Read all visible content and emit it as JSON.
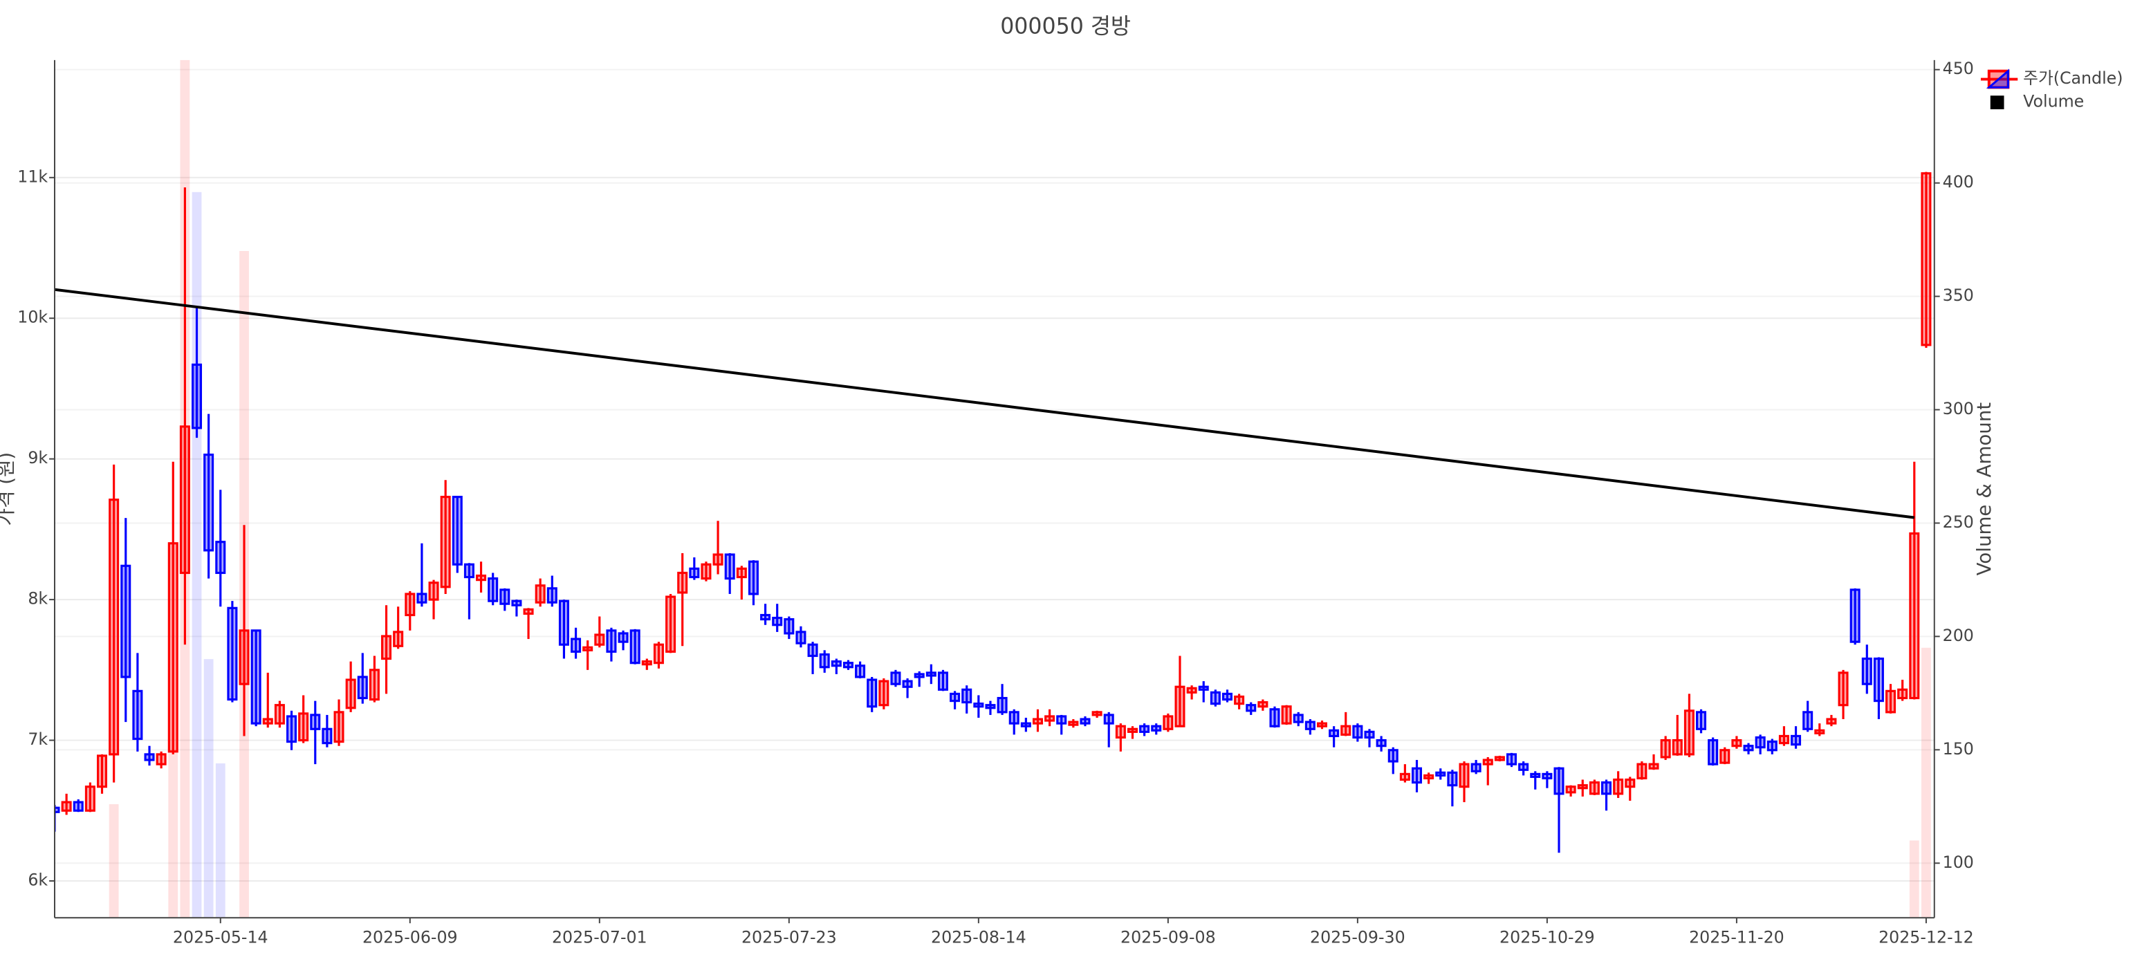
{
  "chart_data": {
    "type": "candlestick",
    "title": "000050 경방",
    "y_label": "가격 (원)",
    "y2_label": "Volume & Amount",
    "grid": true,
    "legend": "top-right",
    "categories": [
      null,
      null,
      null,
      null,
      null,
      null,
      null,
      null,
      null,
      null,
      null,
      null,
      null,
      null,
      "2025-05-14",
      null,
      null,
      null,
      null,
      null,
      null,
      null,
      null,
      null,
      null,
      null,
      null,
      null,
      null,
      null,
      "2025-06-09",
      null,
      null,
      null,
      null,
      null,
      null,
      null,
      null,
      null,
      null,
      null,
      null,
      null,
      null,
      null,
      "2025-07-01",
      null,
      null,
      null,
      null,
      null,
      null,
      null,
      null,
      null,
      null,
      null,
      null,
      null,
      null,
      null,
      "2025-07-23",
      null,
      null,
      null,
      null,
      null,
      null,
      null,
      null,
      null,
      null,
      null,
      null,
      null,
      null,
      null,
      "2025-08-14",
      null,
      null,
      null,
      null,
      null,
      null,
      null,
      null,
      null,
      null,
      null,
      null,
      null,
      null,
      null,
      "2025-09-08",
      null,
      null,
      null,
      null,
      null,
      null,
      null,
      null,
      null,
      null,
      null,
      null,
      null,
      null,
      null,
      "2025-09-30",
      null,
      null,
      null,
      null,
      null,
      null,
      null,
      null,
      null,
      null,
      null,
      null,
      null,
      null,
      null,
      "2025-10-29",
      null,
      null,
      null,
      null,
      null,
      null,
      null,
      null,
      null,
      null,
      null,
      null,
      null,
      null,
      null,
      "2025-11-20",
      null,
      null,
      null,
      null,
      null,
      null,
      null,
      null,
      null,
      null,
      null,
      null,
      null,
      null,
      null,
      "2025-12-12"
    ],
    "ylim": [
      5738,
      11835
    ],
    "yticks": [
      {
        "value": 6000,
        "label": "6k"
      },
      {
        "value": 7000,
        "label": "7k"
      },
      {
        "value": 8000,
        "label": "8k"
      },
      {
        "value": 9000,
        "label": "9k"
      },
      {
        "value": 10000,
        "label": "10k"
      },
      {
        "value": 11000,
        "label": "11k"
      }
    ],
    "y2lim": [
      75.9,
      454.2
    ],
    "y2ticks": [
      100,
      150,
      200,
      250,
      300,
      350,
      400,
      450
    ],
    "candles": {
      "name": "주가(Candle)",
      "increasing_color": "#ff0000",
      "decreasing_color": "#0000ff",
      "open": [
        6520,
        6500,
        6560,
        6500,
        6670,
        6900,
        8240,
        7350,
        6900,
        6830,
        6920,
        8190,
        9670,
        9030,
        8410,
        7940,
        7400,
        7780,
        7120,
        7120,
        7170,
        7000,
        7180,
        7080,
        6990,
        7230,
        7450,
        7290,
        7580,
        7670,
        7890,
        8040,
        8000,
        8090,
        8730,
        8250,
        8140,
        8150,
        8070,
        7990,
        7900,
        7980,
        8080,
        7990,
        7720,
        7640,
        7680,
        7780,
        7760,
        7780,
        7540,
        7550,
        7630,
        8050,
        8220,
        8150,
        8250,
        8320,
        8160,
        8270,
        7890,
        7870,
        7860,
        7770,
        7680,
        7610,
        7560,
        7550,
        7530,
        7430,
        7250,
        7480,
        7420,
        7470,
        7480,
        7480,
        7330,
        7360,
        7260,
        7250,
        7300,
        7200,
        7120,
        7120,
        7140,
        7170,
        7110,
        7150,
        7180,
        7180,
        7020,
        7060,
        7100,
        7100,
        7080,
        7100,
        7340,
        7380,
        7340,
        7330,
        7260,
        7250,
        7240,
        7220,
        7120,
        7180,
        7130,
        7100,
        7070,
        7040,
        7100,
        7060,
        7000,
        6930,
        6720,
        6800,
        6730,
        6770,
        6770,
        6670,
        6830,
        6830,
        6860,
        6900,
        6830,
        6760,
        6760,
        6800,
        6630,
        6660,
        6620,
        6700,
        6620,
        6670,
        6730,
        6800,
        6880,
        6900,
        6900,
        7200,
        7000,
        6840,
        6960,
        6960,
        7020,
        6990,
        6980,
        7030,
        7200,
        7050,
        7120,
        7250,
        8070,
        7580,
        7580,
        7200,
        7300,
        7300,
        9810
      ],
      "high": [
        6540,
        6620,
        6580,
        6700,
        6900,
        8960,
        8580,
        7620,
        6960,
        6920,
        8980,
        10930,
        10080,
        9320,
        8780,
        7990,
        8530,
        7780,
        7480,
        7280,
        7210,
        7320,
        7280,
        7180,
        7290,
        7560,
        7620,
        7600,
        7960,
        7950,
        8060,
        8400,
        8140,
        8850,
        8730,
        8260,
        8270,
        8190,
        8080,
        8000,
        7940,
        8150,
        8170,
        8000,
        7800,
        7710,
        7880,
        7800,
        7780,
        7790,
        7580,
        7700,
        8040,
        8330,
        8300,
        8270,
        8560,
        8330,
        8240,
        8280,
        7970,
        7970,
        7880,
        7810,
        7700,
        7640,
        7580,
        7570,
        7560,
        7450,
        7440,
        7500,
        7440,
        7490,
        7540,
        7500,
        7350,
        7390,
        7320,
        7280,
        7400,
        7220,
        7160,
        7220,
        7220,
        7180,
        7150,
        7170,
        7210,
        7200,
        7120,
        7100,
        7120,
        7120,
        7190,
        7600,
        7390,
        7420,
        7360,
        7360,
        7330,
        7270,
        7290,
        7240,
        7250,
        7200,
        7150,
        7140,
        7100,
        7200,
        7120,
        7080,
        7030,
        6950,
        6830,
        6860,
        6770,
        6800,
        6790,
        6850,
        6860,
        6880,
        6890,
        6910,
        6850,
        6780,
        6780,
        6810,
        6680,
        6720,
        6720,
        6720,
        6780,
        6740,
        6850,
        6900,
        7030,
        7180,
        7330,
        7220,
        7020,
        6950,
        7030,
        6980,
        7040,
        7010,
        7100,
        7100,
        7280,
        7120,
        7180,
        7500,
        8080,
        7680,
        7590,
        7400,
        7430,
        8980,
        11040
      ],
      "low": [
        6350,
        6470,
        6490,
        6490,
        6620,
        6700,
        7130,
        6920,
        6820,
        6800,
        6900,
        7680,
        9150,
        8150,
        7950,
        7270,
        7030,
        7100,
        7090,
        7090,
        6930,
        6980,
        6830,
        6950,
        6960,
        7200,
        7260,
        7270,
        7330,
        7650,
        7780,
        7950,
        7860,
        8040,
        8190,
        7860,
        8050,
        7960,
        7920,
        7880,
        7720,
        7950,
        7950,
        7580,
        7580,
        7500,
        7660,
        7560,
        7640,
        7540,
        7500,
        7510,
        7620,
        7670,
        8140,
        8130,
        8180,
        8040,
        8000,
        7960,
        7820,
        7770,
        7720,
        7660,
        7470,
        7480,
        7470,
        7500,
        7440,
        7200,
        7220,
        7380,
        7300,
        7380,
        7400,
        7350,
        7220,
        7190,
        7160,
        7180,
        7180,
        7040,
        7060,
        7060,
        7100,
        7040,
        7090,
        7100,
        7160,
        6950,
        6920,
        7010,
        7030,
        7040,
        7060,
        7100,
        7290,
        7270,
        7240,
        7270,
        7220,
        7180,
        7210,
        7090,
        7110,
        7100,
        7040,
        7080,
        6950,
        7030,
        6990,
        6950,
        6920,
        6760,
        6700,
        6630,
        6690,
        6720,
        6530,
        6560,
        6760,
        6680,
        6850,
        6810,
        6750,
        6650,
        6660,
        6200,
        6600,
        6600,
        6610,
        6500,
        6590,
        6570,
        6720,
        6790,
        6860,
        6890,
        6880,
        7050,
        6820,
        6830,
        6940,
        6900,
        6900,
        6900,
        6960,
        6940,
        7060,
        7030,
        7100,
        7150,
        7680,
        7330,
        7150,
        7190,
        7280,
        7290,
        9790
      ],
      "close": [
        6490,
        6560,
        6500,
        6670,
        6890,
        8710,
        7450,
        7010,
        6860,
        6900,
        8400,
        9230,
        9220,
        8350,
        8190,
        7290,
        7780,
        7120,
        7150,
        7250,
        6990,
        7190,
        7080,
        6980,
        7200,
        7430,
        7300,
        7500,
        7740,
        7770,
        8040,
        7980,
        8120,
        8730,
        8250,
        8160,
        8170,
        7990,
        7970,
        7960,
        7930,
        8100,
        7980,
        7680,
        7630,
        7660,
        7750,
        7630,
        7700,
        7550,
        7560,
        7680,
        8020,
        8190,
        8160,
        8250,
        8320,
        8150,
        8220,
        8040,
        7860,
        7820,
        7760,
        7690,
        7600,
        7520,
        7530,
        7520,
        7450,
        7240,
        7420,
        7400,
        7380,
        7450,
        7460,
        7360,
        7280,
        7270,
        7240,
        7230,
        7200,
        7120,
        7100,
        7150,
        7170,
        7120,
        7130,
        7120,
        7200,
        7120,
        7100,
        7080,
        7060,
        7070,
        7170,
        7380,
        7370,
        7360,
        7260,
        7290,
        7310,
        7210,
        7270,
        7100,
        7240,
        7130,
        7080,
        7120,
        7030,
        7100,
        7020,
        7020,
        6960,
        6850,
        6760,
        6700,
        6750,
        6750,
        6680,
        6830,
        6780,
        6860,
        6880,
        6830,
        6790,
        6740,
        6730,
        6620,
        6670,
        6680,
        6700,
        6620,
        6720,
        6720,
        6830,
        6830,
        7000,
        7000,
        7210,
        7080,
        6830,
        6930,
        7000,
        6930,
        6950,
        6930,
        7030,
        6970,
        7080,
        7070,
        7150,
        7480,
        7700,
        7400,
        7280,
        7350,
        7360,
        8470,
        11030
      ]
    },
    "volume": {
      "name": "Volume",
      "axis": "y2",
      "legend_color": "#000000",
      "values": [
        null,
        null,
        null,
        null,
        null,
        126,
        null,
        null,
        null,
        null,
        150,
        470,
        396,
        190,
        144,
        null,
        370,
        null,
        null,
        null,
        null,
        null,
        null,
        null,
        null,
        null,
        null,
        null,
        null,
        null,
        null,
        null,
        null,
        null,
        null,
        null,
        null,
        null,
        null,
        null,
        null,
        null,
        null,
        null,
        null,
        null,
        null,
        null,
        null,
        null,
        null,
        null,
        null,
        null,
        null,
        null,
        null,
        null,
        null,
        null,
        null,
        null,
        null,
        null,
        null,
        null,
        null,
        null,
        null,
        null,
        null,
        null,
        null,
        null,
        null,
        null,
        null,
        null,
        null,
        null,
        null,
        null,
        null,
        null,
        null,
        null,
        null,
        null,
        null,
        null,
        null,
        null,
        null,
        null,
        null,
        null,
        null,
        null,
        null,
        null,
        null,
        null,
        null,
        null,
        null,
        null,
        null,
        null,
        null,
        null,
        null,
        null,
        null,
        null,
        null,
        null,
        null,
        null,
        null,
        null,
        null,
        null,
        null,
        null,
        null,
        null,
        null,
        null,
        null,
        null,
        null,
        null,
        null,
        null,
        null,
        null,
        null,
        null,
        null,
        null,
        null,
        null,
        null,
        null,
        null,
        null,
        null,
        null,
        null,
        null,
        null,
        null,
        null,
        null,
        null,
        null,
        null,
        110,
        195
      ]
    },
    "trendline": {
      "color": "#000000",
      "x": [
        0,
        157
      ],
      "values": [
        10204,
        8583
      ]
    }
  }
}
